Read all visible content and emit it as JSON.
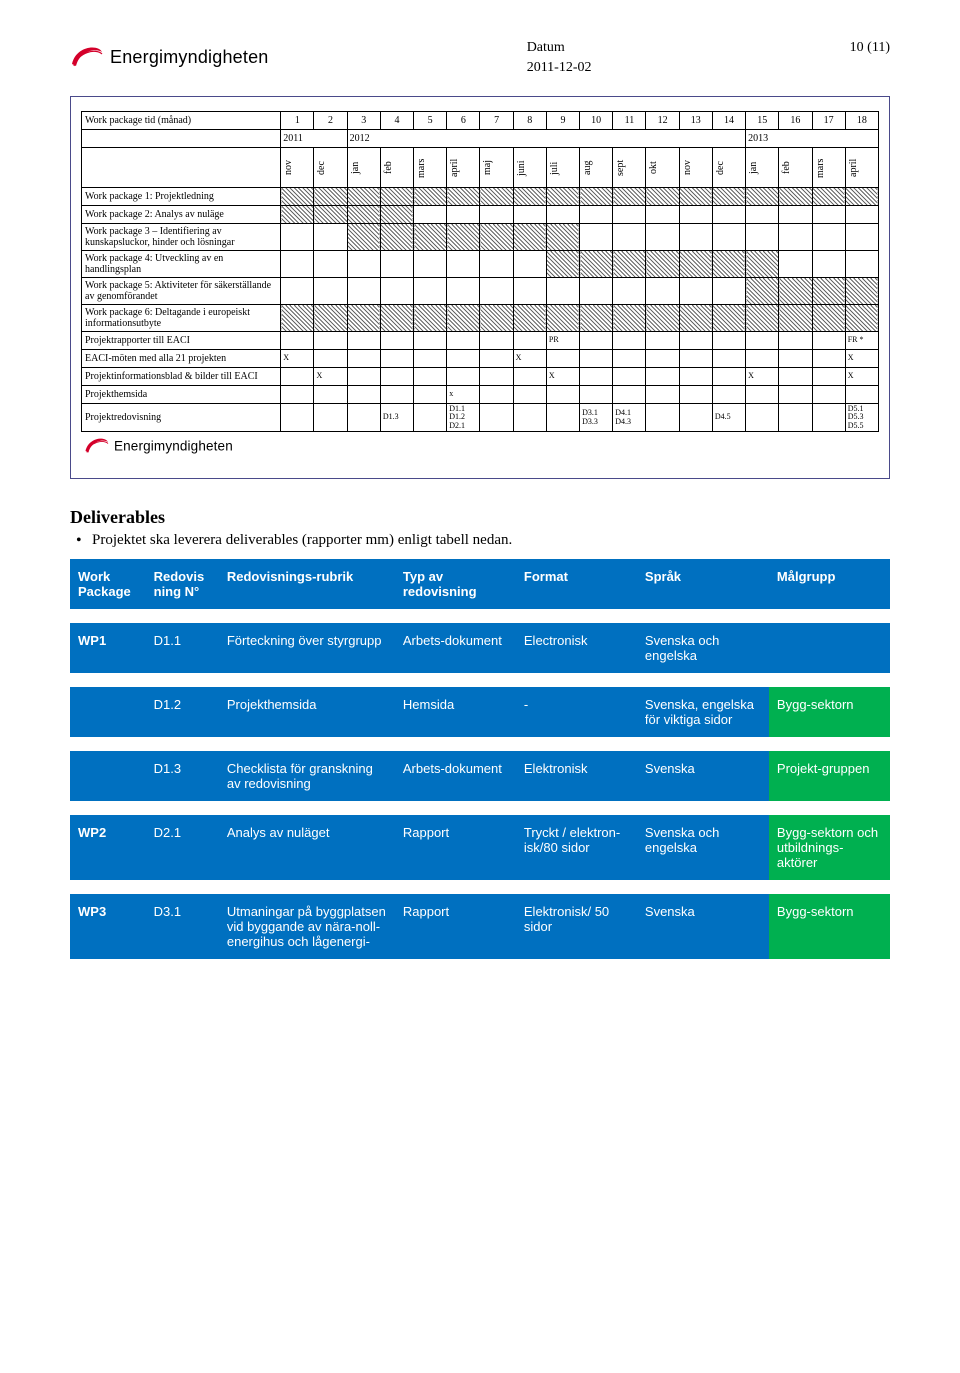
{
  "header": {
    "brand": "Energimyndigheten",
    "date_label": "Datum",
    "date_value": "2011-12-02",
    "page_indicator": "10 (11)"
  },
  "gantt": {
    "row_title": "Work package tid (månad)",
    "month_numbers": [
      "1",
      "2",
      "3",
      "4",
      "5",
      "6",
      "7",
      "8",
      "9",
      "10",
      "11",
      "12",
      "13",
      "14",
      "15",
      "16",
      "17",
      "18"
    ],
    "year_groups": [
      {
        "label": "2011",
        "span": 2
      },
      {
        "label": "2012",
        "span": 12
      },
      {
        "label": "2013",
        "span": 4
      }
    ],
    "month_names": [
      "nov",
      "dec",
      "jan",
      "feb",
      "mars",
      "april",
      "maj",
      "juni",
      "juli",
      "aug",
      "sept",
      "okt",
      "nov",
      "dec",
      "jan",
      "feb",
      "mars",
      "april"
    ],
    "rows": [
      {
        "label": "Work package 1: Projektledning",
        "bars": [
          true,
          true,
          true,
          true,
          true,
          true,
          true,
          true,
          true,
          true,
          true,
          true,
          true,
          true,
          true,
          true,
          true,
          true
        ],
        "notes": {}
      },
      {
        "label": "Work package 2: Analys av nuläge",
        "bars": [
          true,
          true,
          true,
          true,
          false,
          false,
          false,
          false,
          false,
          false,
          false,
          false,
          false,
          false,
          false,
          false,
          false,
          false
        ],
        "notes": {}
      },
      {
        "label": "Work package 3 – Identifiering av kunskapsluckor, hinder och lösningar",
        "bars": [
          false,
          false,
          true,
          true,
          true,
          true,
          true,
          true,
          true,
          false,
          false,
          false,
          false,
          false,
          false,
          false,
          false,
          false
        ],
        "notes": {}
      },
      {
        "label": "Work package 4: Utveckling av en handlingsplan",
        "bars": [
          false,
          false,
          false,
          false,
          false,
          false,
          false,
          false,
          true,
          true,
          true,
          true,
          true,
          true,
          true,
          false,
          false,
          false
        ],
        "notes": {}
      },
      {
        "label": "Work package 5: Aktiviteter för säkerställande av genomförandet",
        "bars": [
          false,
          false,
          false,
          false,
          false,
          false,
          false,
          false,
          false,
          false,
          false,
          false,
          false,
          false,
          true,
          true,
          true,
          true
        ],
        "notes": {}
      },
      {
        "label": "Work package 6: Deltagande i europeiskt informationsutbyte",
        "bars": [
          true,
          true,
          true,
          true,
          true,
          true,
          true,
          true,
          true,
          true,
          true,
          true,
          true,
          true,
          true,
          true,
          true,
          true
        ],
        "notes": {}
      },
      {
        "label": "Projektrapporter till EACI",
        "bars": [
          false,
          false,
          false,
          false,
          false,
          false,
          false,
          false,
          false,
          false,
          false,
          false,
          false,
          false,
          false,
          false,
          false,
          false
        ],
        "notes": {
          "8": "PR",
          "17": "FR *"
        }
      },
      {
        "label": "EACI-möten med alla 21 projekten",
        "bars": [
          false,
          false,
          false,
          false,
          false,
          false,
          false,
          false,
          false,
          false,
          false,
          false,
          false,
          false,
          false,
          false,
          false,
          false
        ],
        "notes": {
          "0": "X",
          "7": "X",
          "17": "X"
        }
      },
      {
        "label": "Projektinformationsblad & bilder till EACI",
        "bars": [
          false,
          false,
          false,
          false,
          false,
          false,
          false,
          false,
          false,
          false,
          false,
          false,
          false,
          false,
          false,
          false,
          false,
          false
        ],
        "notes": {
          "1": "X",
          "8": "X",
          "14": "X",
          "17": "X"
        }
      },
      {
        "label": "Projekthemsida",
        "bars": [
          false,
          false,
          false,
          false,
          false,
          false,
          false,
          false,
          false,
          false,
          false,
          false,
          false,
          false,
          false,
          false,
          false,
          false
        ],
        "notes": {
          "5": "x"
        }
      },
      {
        "label": "Projektredovisning",
        "bars": [
          false,
          false,
          false,
          false,
          false,
          false,
          false,
          false,
          false,
          false,
          false,
          false,
          false,
          false,
          false,
          false,
          false,
          false
        ],
        "notes": {
          "3": "D1.3",
          "5": "D1.1 D1.2 D2.1",
          "9": "D3.1 D3.3",
          "10": "D4.1 D4.3",
          "13": "D4.5",
          "17": "D5.1 D5.3 D5.5"
        }
      }
    ],
    "footer_brand": "Energimyndigheten"
  },
  "deliverables": {
    "heading": "Deliverables",
    "bullet": "Projektet ska leverera deliverables (rapporter mm) enligt tabell nedan.",
    "columns": [
      "Work Package",
      "Redovis ning N°",
      "Redovisnings-rubrik",
      "Typ av redovisning",
      "Format",
      "Språk",
      "Målgrupp"
    ],
    "groups": [
      {
        "wp": "WP1",
        "rows": [
          {
            "num": "D1.1",
            "rubrik": "Förteckning över styrgrupp",
            "typ": "Arbets-dokument",
            "format": "Electronisk",
            "sprak": "Svenska och engelska",
            "mal": ""
          },
          {
            "num": "D1.2",
            "rubrik": "Projekthemsida",
            "typ": "Hemsida",
            "format": "-",
            "sprak": "Svenska, engelska för viktiga sidor",
            "mal": "Bygg-sektorn",
            "mal_green": true
          },
          {
            "num": "D1.3",
            "rubrik": "Checklista för granskning av redovisning",
            "typ": "Arbets-dokument",
            "format": "Elektronisk",
            "sprak": "Svenska",
            "mal": "Projekt-gruppen",
            "mal_green": true
          }
        ]
      },
      {
        "wp": "WP2",
        "rows": [
          {
            "num": "D2.1",
            "rubrik": "Analys av nuläget",
            "typ": "Rapport",
            "format": "Tryckt / elektron-isk/80 sidor",
            "sprak": "Svenska och engelska",
            "mal": "Bygg-sektorn och utbildnings-aktörer",
            "mal_green": true
          }
        ]
      },
      {
        "wp": "WP3",
        "rows": [
          {
            "num": "D3.1",
            "rubrik": "Utmaningar på byggplatsen vid byggande av nära-noll-energihus och lågenergi-",
            "typ": "Rapport",
            "format": "Elektronisk/ 50 sidor",
            "sprak": "Svenska",
            "mal": "Bygg-sektorn",
            "mal_green": true
          }
        ]
      }
    ]
  },
  "colors": {
    "table_header_bg": "#0070c0",
    "green_bg": "#00b050",
    "frame_border": "#4a4a8a"
  }
}
